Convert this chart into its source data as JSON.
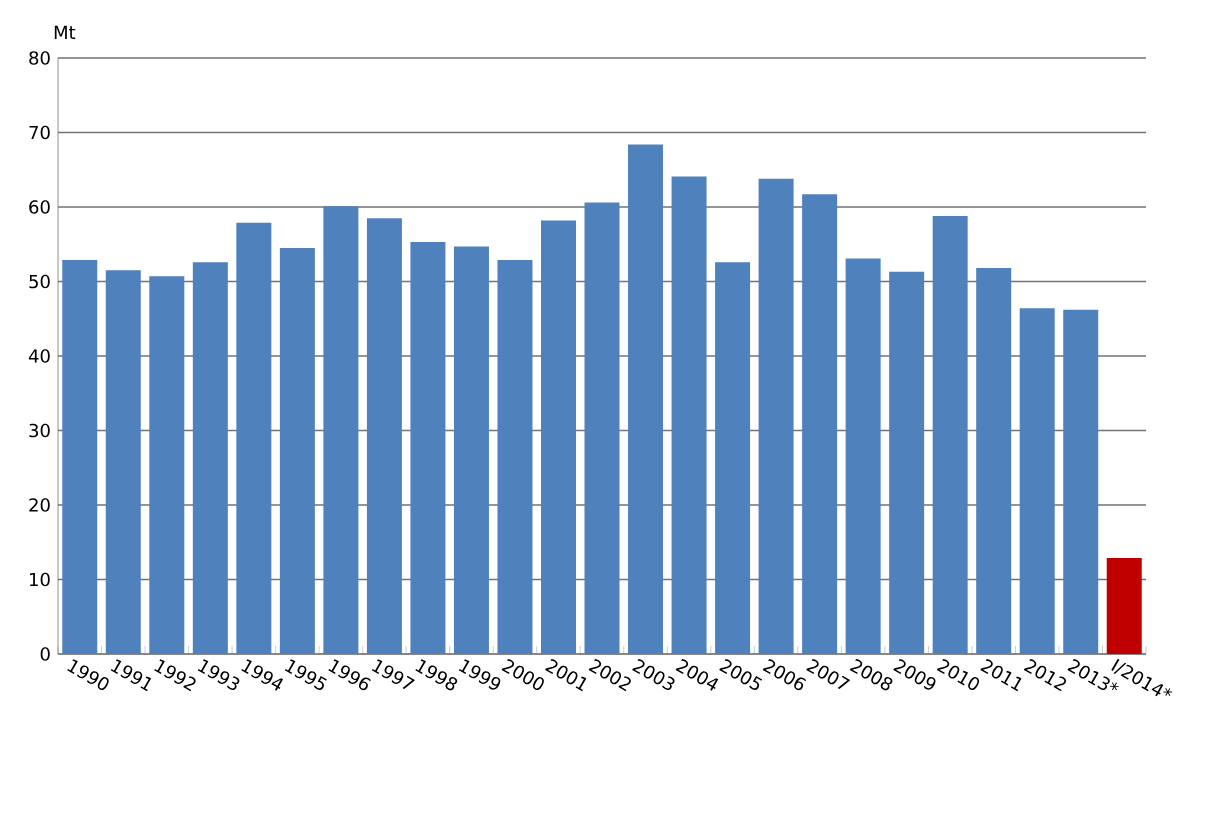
{
  "chart_data": {
    "type": "bar",
    "ylabel": "Mt",
    "categories": [
      "1990",
      "1991",
      "1992",
      "1993",
      "1994",
      "1995",
      "1996",
      "1997",
      "1998",
      "1999",
      "2000",
      "2001",
      "2002",
      "2003",
      "2004",
      "2005",
      "2006",
      "2007",
      "2008",
      "2009",
      "2010",
      "2011",
      "2012",
      "2013*",
      "I/2014*"
    ],
    "values": [
      52.9,
      51.5,
      50.7,
      52.6,
      57.9,
      54.5,
      60.1,
      58.5,
      55.3,
      54.7,
      52.9,
      58.2,
      60.6,
      68.4,
      64.1,
      52.6,
      63.8,
      61.7,
      53.1,
      51.3,
      58.8,
      51.8,
      46.4,
      46.2,
      12.9
    ],
    "colors": [
      "#4f81bd",
      "#4f81bd",
      "#4f81bd",
      "#4f81bd",
      "#4f81bd",
      "#4f81bd",
      "#4f81bd",
      "#4f81bd",
      "#4f81bd",
      "#4f81bd",
      "#4f81bd",
      "#4f81bd",
      "#4f81bd",
      "#4f81bd",
      "#4f81bd",
      "#4f81bd",
      "#4f81bd",
      "#4f81bd",
      "#4f81bd",
      "#4f81bd",
      "#4f81bd",
      "#4f81bd",
      "#4f81bd",
      "#4f81bd",
      "#c00000"
    ],
    "ylim": [
      0,
      80
    ],
    "yticks": [
      0,
      10,
      20,
      30,
      40,
      50,
      60,
      70,
      80
    ],
    "grid": "y"
  }
}
